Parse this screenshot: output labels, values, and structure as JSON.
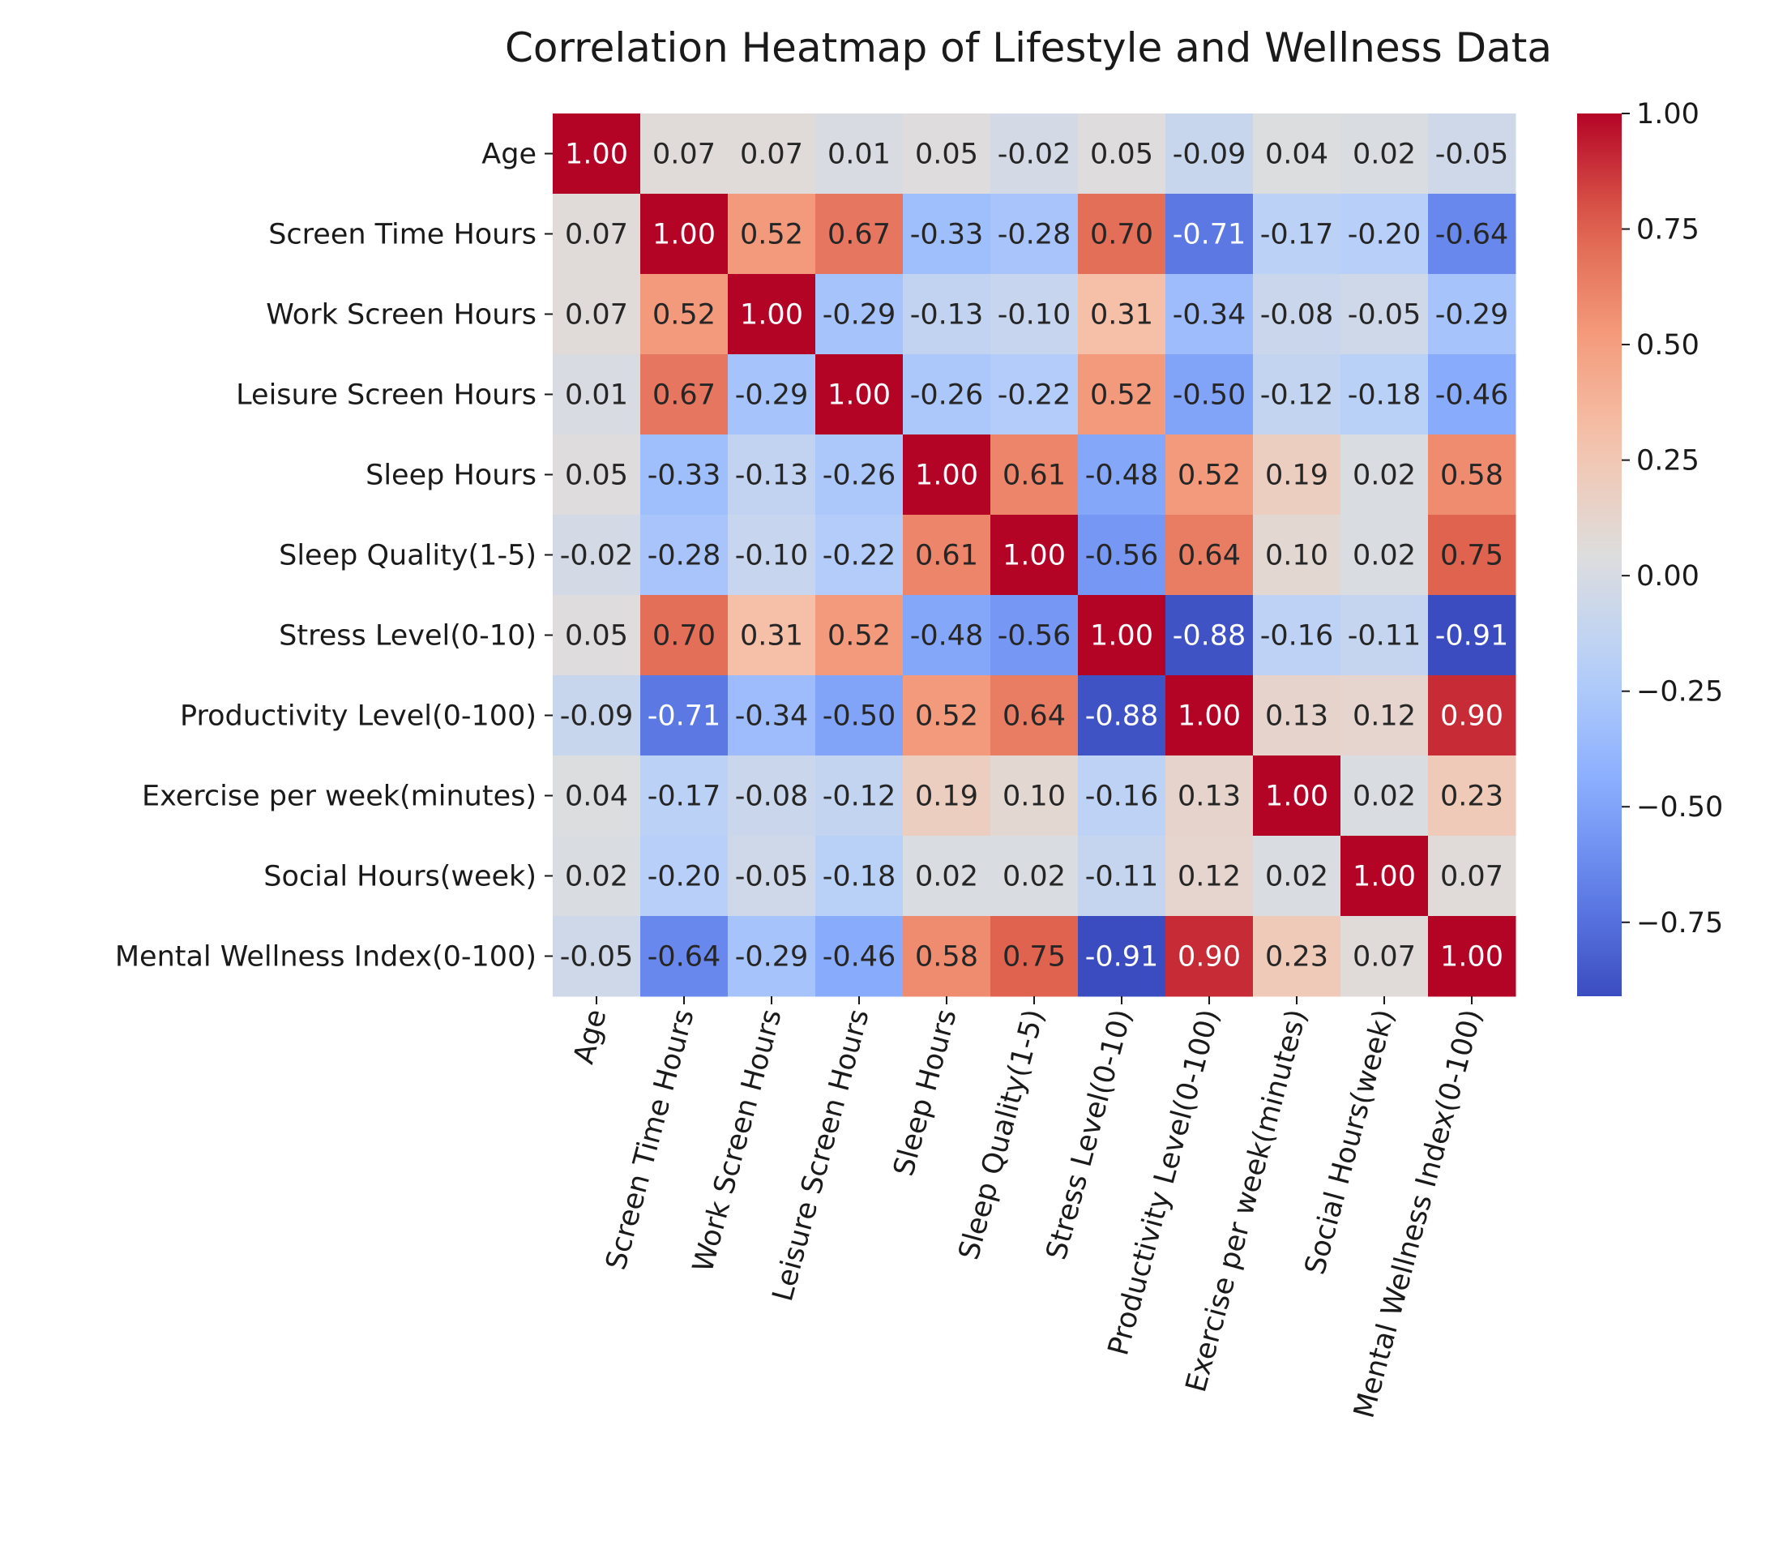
{
  "chart_data": {
    "type": "heatmap",
    "title": "Correlation Heatmap of Lifestyle and Wellness Data",
    "xlabel": "",
    "ylabel": "",
    "labels": [
      "Age",
      "Screen Time Hours",
      "Work Screen Hours",
      "Leisure Screen Hours",
      "Sleep Hours",
      "Sleep Quality(1-5)",
      "Stress Level(0-10)",
      "Productivity Level(0-100)",
      "Exercise per week(minutes)",
      "Social Hours(week)",
      "Mental Wellness Index(0-100)"
    ],
    "values": [
      [
        1.0,
        0.07,
        0.07,
        0.01,
        0.05,
        -0.02,
        0.05,
        -0.09,
        0.04,
        0.02,
        -0.05
      ],
      [
        0.07,
        1.0,
        0.52,
        0.67,
        -0.33,
        -0.28,
        0.7,
        -0.71,
        -0.17,
        -0.2,
        -0.64
      ],
      [
        0.07,
        0.52,
        1.0,
        -0.29,
        -0.13,
        -0.1,
        0.31,
        -0.34,
        -0.08,
        -0.05,
        -0.29
      ],
      [
        0.01,
        0.67,
        -0.29,
        1.0,
        -0.26,
        -0.22,
        0.52,
        -0.5,
        -0.12,
        -0.18,
        -0.46
      ],
      [
        0.05,
        -0.33,
        -0.13,
        -0.26,
        1.0,
        0.61,
        -0.48,
        0.52,
        0.19,
        0.02,
        0.58
      ],
      [
        -0.02,
        -0.28,
        -0.1,
        -0.22,
        0.61,
        1.0,
        -0.56,
        0.64,
        0.1,
        0.02,
        0.75
      ],
      [
        0.05,
        0.7,
        0.31,
        0.52,
        -0.48,
        -0.56,
        1.0,
        -0.88,
        -0.16,
        -0.11,
        -0.91
      ],
      [
        -0.09,
        -0.71,
        -0.34,
        -0.5,
        0.52,
        0.64,
        -0.88,
        1.0,
        0.13,
        0.12,
        0.9
      ],
      [
        0.04,
        -0.17,
        -0.08,
        -0.12,
        0.19,
        0.1,
        -0.16,
        0.13,
        1.0,
        0.02,
        0.23
      ],
      [
        0.02,
        -0.2,
        -0.05,
        -0.18,
        0.02,
        0.02,
        -0.11,
        0.12,
        0.02,
        1.0,
        0.07
      ],
      [
        -0.05,
        -0.64,
        -0.29,
        -0.46,
        0.58,
        0.75,
        -0.91,
        0.9,
        0.23,
        0.07,
        1.0
      ]
    ],
    "value_range": [
      -0.91,
      1.0
    ],
    "colormap": "coolwarm",
    "annotation_format": "0.00",
    "colorbar": {
      "ticks": [
        1.0,
        0.75,
        0.5,
        0.25,
        0.0,
        -0.25,
        -0.5,
        -0.75
      ],
      "tick_labels": [
        "1.00",
        "0.75",
        "0.50",
        "0.25",
        "0.00",
        "−0.25",
        "−0.50",
        "−0.75"
      ],
      "placement": "right"
    },
    "grid": false,
    "x_tick_rotation_deg": 75
  }
}
